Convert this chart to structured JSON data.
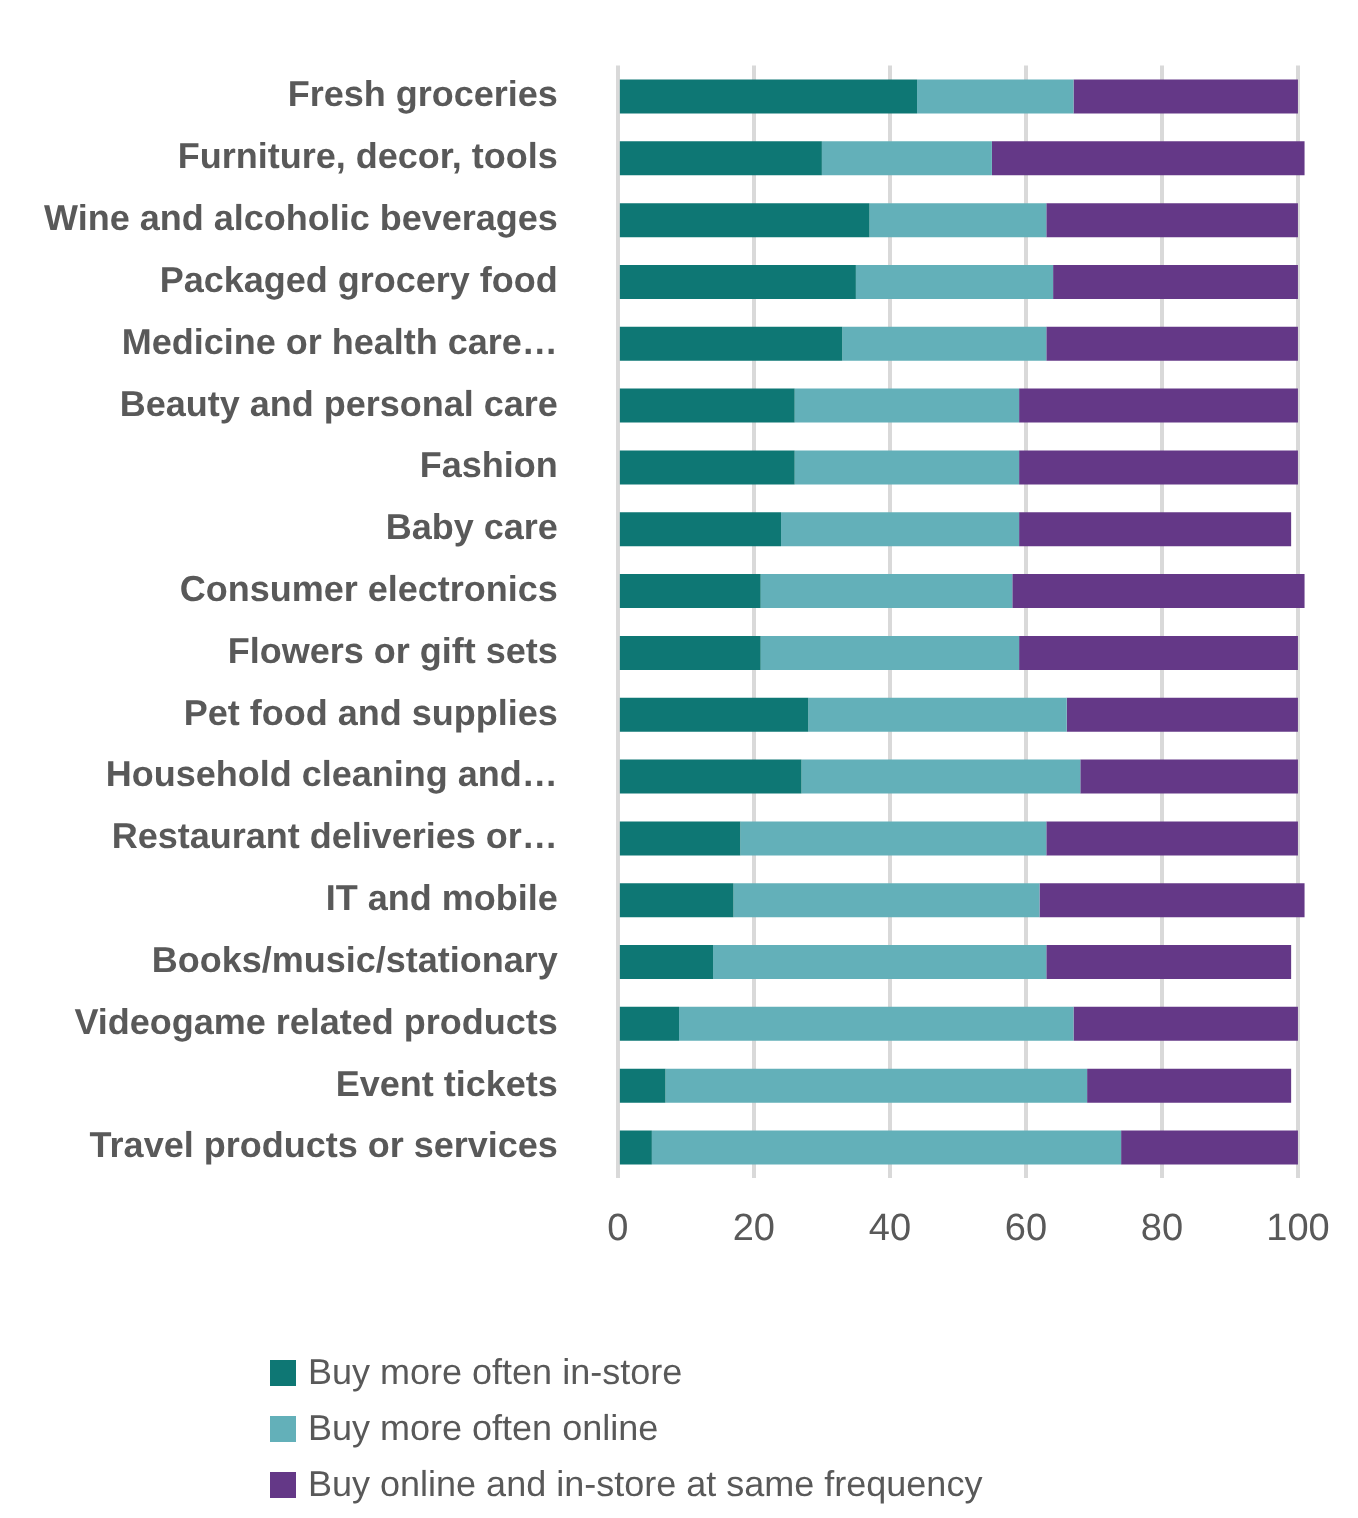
{
  "chart_data": {
    "type": "bar",
    "orientation": "horizontal",
    "stacked": true,
    "categories": [
      "Fresh groceries",
      "Furniture, decor, tools",
      "Wine and alcoholic beverages",
      "Packaged grocery food",
      "Medicine or health care…",
      "Beauty and personal care",
      "Fashion",
      "Baby care",
      "Consumer electronics",
      "Flowers or gift sets",
      "Pet food and supplies",
      "Household cleaning and…",
      "Restaurant deliveries or…",
      "IT and mobile",
      "Books/music/stationary",
      "Videogame related products",
      "Event tickets",
      "Travel products or services"
    ],
    "series": [
      {
        "name": "Buy more often in-store",
        "color": "#0e7774",
        "values": [
          44,
          30,
          37,
          35,
          33,
          26,
          26,
          24,
          21,
          21,
          28,
          27,
          18,
          17,
          14,
          9,
          7,
          5
        ]
      },
      {
        "name": "Buy more often online",
        "color": "#63b0b9",
        "values": [
          23,
          25,
          26,
          29,
          30,
          33,
          33,
          35,
          37,
          38,
          38,
          41,
          45,
          45,
          49,
          58,
          62,
          69
        ]
      },
      {
        "name": "Buy online and in-store at same frequency",
        "color": "#643887",
        "values": [
          33,
          46,
          37,
          36,
          37,
          41,
          41,
          40,
          43,
          41,
          34,
          32,
          37,
          39,
          36,
          33,
          30,
          26
        ]
      }
    ],
    "xlim": [
      0,
      101
    ],
    "xticks": [
      0,
      20,
      40,
      60,
      80,
      100
    ],
    "grid": "x",
    "legend": "bottom"
  }
}
